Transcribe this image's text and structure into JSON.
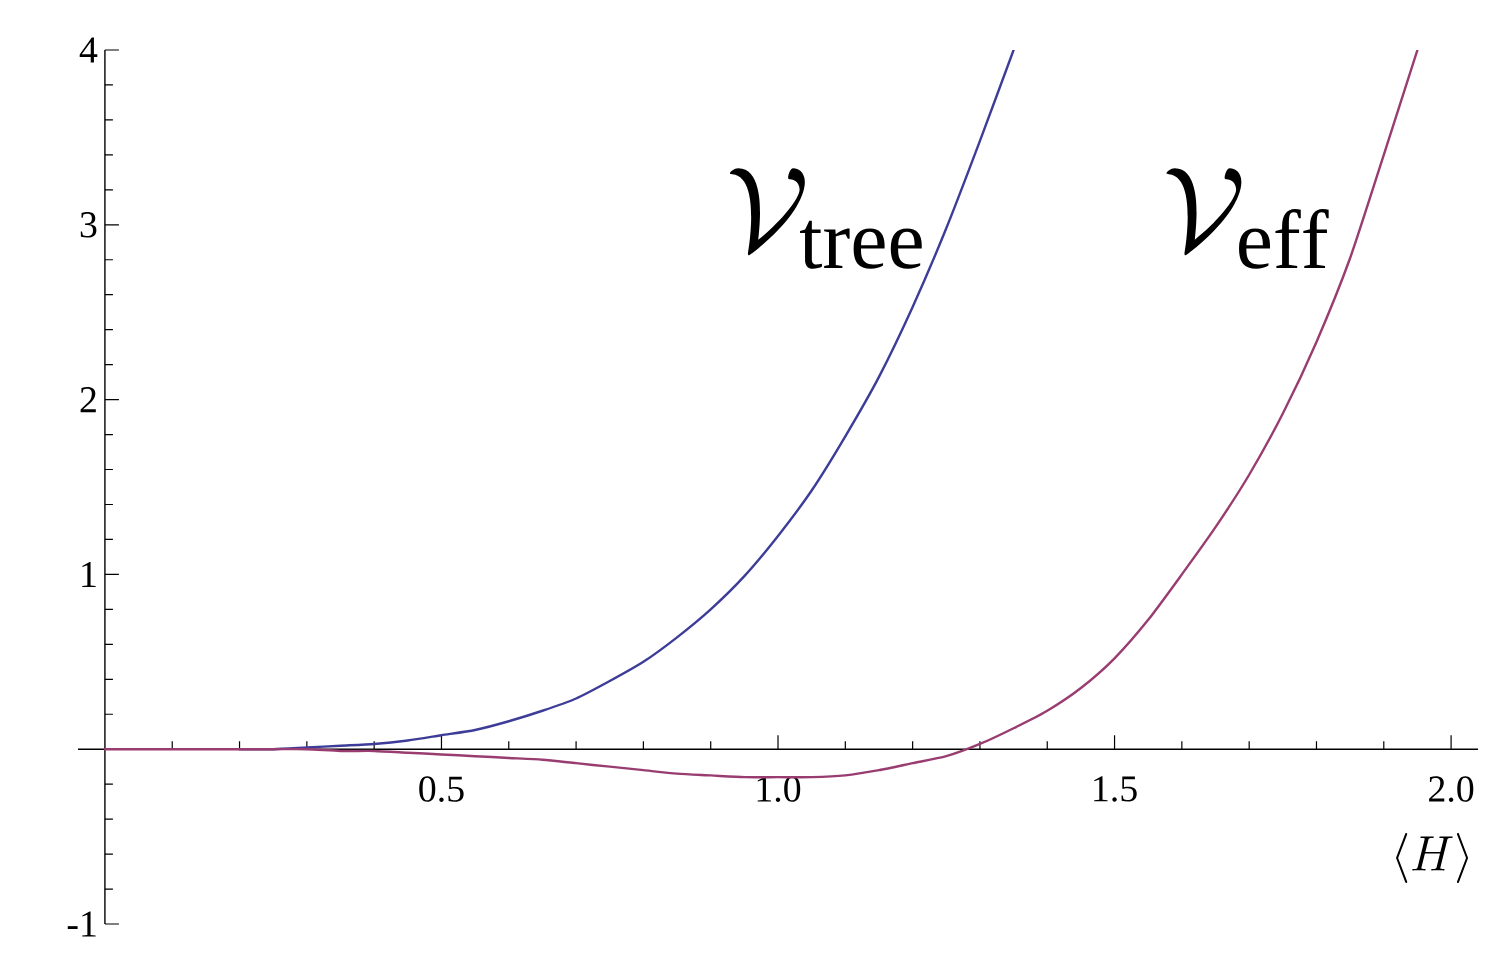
{
  "chart_data": {
    "type": "line",
    "xlabel": "\\langle H\\rangle",
    "xlim": [
      -0.04,
      2.04
    ],
    "ylim": [
      -1,
      4
    ],
    "xticks": [
      {
        "value": 0.1,
        "label": null
      },
      {
        "value": 0.2,
        "label": null
      },
      {
        "value": 0.3,
        "label": null
      },
      {
        "value": 0.4,
        "label": null
      },
      0.5,
      {
        "value": 0.6,
        "label": null
      },
      {
        "value": 0.7,
        "label": null
      },
      {
        "value": 0.8,
        "label": null
      },
      {
        "value": 0.9,
        "label": null
      },
      {
        "value": 1,
        "label": "1.0"
      },
      {
        "value": 1.1,
        "label": null
      },
      {
        "value": 1.2,
        "label": null
      },
      {
        "value": 1.3,
        "label": null
      },
      {
        "value": 1.4,
        "label": null
      },
      1.5,
      {
        "value": 1.6,
        "label": null
      },
      {
        "value": 1.7,
        "label": null
      },
      {
        "value": 1.8,
        "label": null
      },
      {
        "value": 1.9,
        "label": null
      },
      {
        "value": 2,
        "label": "2.0"
      }
    ],
    "yticks": [
      -1,
      {
        "value": -0.8,
        "label": null
      },
      {
        "value": -0.6,
        "label": null
      },
      {
        "value": -0.4,
        "label": null
      },
      {
        "value": -0.2,
        "label": null
      },
      {
        "value": 0.2,
        "label": null
      },
      {
        "value": 0.4,
        "label": null
      },
      {
        "value": 0.6,
        "label": null
      },
      {
        "value": 0.8,
        "label": null
      },
      1,
      {
        "value": 1.2,
        "label": null
      },
      {
        "value": 1.4,
        "label": null
      },
      {
        "value": 1.6,
        "label": null
      },
      {
        "value": 1.8,
        "label": null
      },
      2,
      {
        "value": 2.2,
        "label": null
      },
      {
        "value": 2.4,
        "label": null
      },
      {
        "value": 2.6,
        "label": null
      },
      {
        "value": 2.8,
        "label": null
      },
      3,
      {
        "value": 3.2,
        "label": null
      },
      {
        "value": 3.4,
        "label": null
      },
      {
        "value": 3.6,
        "label": null
      },
      {
        "value": 3.8,
        "label": null
      },
      4
    ],
    "series": [
      {
        "name": "\\mathcal{V}_{\\mathrm{tree}}",
        "color": "#3d3d99",
        "x": [
          0.2,
          0.25,
          0.3,
          0.35,
          0.4,
          0.45,
          0.5,
          0.55,
          0.6,
          0.65,
          0.7,
          0.75,
          0.8,
          0.85,
          0.9,
          0.95,
          1.0,
          1.05,
          1.1,
          1.15,
          1.2,
          1.25,
          1.3,
          1.35
        ],
        "values": [
          0,
          0,
          0.01,
          0.02,
          0.03,
          0.05,
          0.08,
          0.11,
          0.16,
          0.22,
          0.29,
          0.39,
          0.5,
          0.64,
          0.8,
          0.99,
          1.22,
          1.48,
          1.79,
          2.13,
          2.53,
          2.98,
          3.48,
          4.0
        ]
      },
      {
        "name": "\\mathcal{V}_{\\mathrm{eff}}",
        "color": "#993d71",
        "x": [
          0,
          0.05,
          0.1,
          0.15,
          0.2,
          0.25,
          0.3,
          0.35,
          0.4,
          0.45,
          0.5,
          0.55,
          0.6,
          0.65,
          0.7,
          0.75,
          0.8,
          0.85,
          0.9,
          0.95,
          1.0,
          1.05,
          1.1,
          1.15,
          1.2,
          1.25,
          1.3,
          1.35,
          1.4,
          1.45,
          1.5,
          1.55,
          1.6,
          1.65,
          1.7,
          1.75,
          1.8,
          1.85,
          1.9,
          1.95
        ],
        "values": [
          0,
          0,
          0,
          0,
          0,
          0,
          0,
          -0.01,
          -0.01,
          -0.02,
          -0.03,
          -0.04,
          -0.05,
          -0.06,
          -0.08,
          -0.1,
          -0.12,
          -0.14,
          -0.15,
          -0.16,
          -0.16,
          -0.16,
          -0.15,
          -0.12,
          -0.08,
          -0.04,
          0.03,
          0.12,
          0.22,
          0.35,
          0.52,
          0.74,
          1.0,
          1.27,
          1.57,
          1.92,
          2.33,
          2.81,
          3.4,
          4.0
        ]
      }
    ]
  }
}
